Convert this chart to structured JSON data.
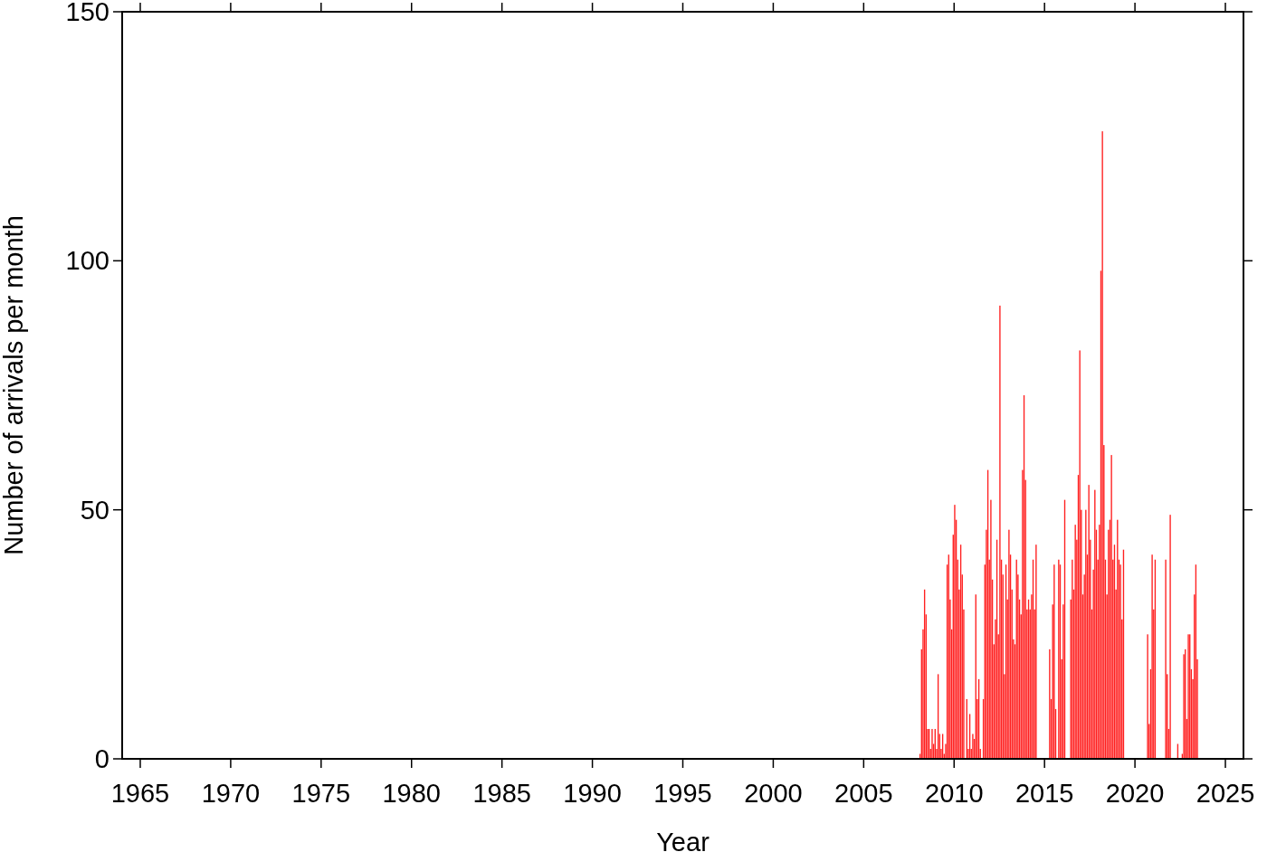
{
  "chart_data": {
    "type": "bar",
    "xlabel": "Year",
    "ylabel": "Number of arrivals per month",
    "xlim": [
      "1964",
      "2026"
    ],
    "ylim": [
      0,
      150
    ],
    "xticks": [
      "1965",
      "1970",
      "1975",
      "1980",
      "1985",
      "1990",
      "1995",
      "2000",
      "2005",
      "2010",
      "2015",
      "2020",
      "2025"
    ],
    "yticks": [
      0,
      50,
      100,
      150
    ],
    "x": [
      "2008-01",
      "2008-02",
      "2008-03",
      "2008-04",
      "2008-05",
      "2008-06",
      "2008-07",
      "2008-08",
      "2008-09",
      "2008-10",
      "2008-11",
      "2008-12",
      "2009-01",
      "2009-02",
      "2009-03",
      "2009-04",
      "2009-05",
      "2009-06",
      "2009-07",
      "2009-08",
      "2009-09",
      "2009-10",
      "2009-11",
      "2009-12",
      "2010-01",
      "2010-02",
      "2010-03",
      "2010-04",
      "2010-05",
      "2010-06",
      "2010-07",
      "2010-08",
      "2010-09",
      "2010-10",
      "2010-11",
      "2010-12",
      "2011-01",
      "2011-02",
      "2011-03",
      "2011-04",
      "2011-05",
      "2011-06",
      "2011-07",
      "2011-08",
      "2011-09",
      "2011-10",
      "2011-11",
      "2011-12",
      "2012-01",
      "2012-02",
      "2012-03",
      "2012-04",
      "2012-05",
      "2012-06",
      "2012-07",
      "2012-08",
      "2012-09",
      "2012-10",
      "2012-11",
      "2012-12",
      "2013-01",
      "2013-02",
      "2013-03",
      "2013-04",
      "2013-05",
      "2013-06",
      "2013-07",
      "2013-08",
      "2013-09",
      "2013-10",
      "2013-11",
      "2013-12",
      "2014-01",
      "2014-02",
      "2014-03",
      "2014-04",
      "2014-05",
      "2014-06",
      "2014-07",
      "2014-08",
      "2014-09",
      "2014-10",
      "2014-11",
      "2014-12",
      "2015-01",
      "2015-02",
      "2015-03",
      "2015-04",
      "2015-05",
      "2015-06",
      "2015-07",
      "2015-08",
      "2015-09",
      "2015-10",
      "2015-11",
      "2015-12",
      "2016-01",
      "2016-02",
      "2016-03",
      "2016-04",
      "2016-05",
      "2016-06",
      "2016-07",
      "2016-08",
      "2016-09",
      "2016-10",
      "2016-11",
      "2016-12",
      "2017-01",
      "2017-02",
      "2017-03",
      "2017-04",
      "2017-05",
      "2017-06",
      "2017-07",
      "2017-08",
      "2017-09",
      "2017-10",
      "2017-11",
      "2017-12",
      "2018-01",
      "2018-02",
      "2018-03",
      "2018-04",
      "2018-05",
      "2018-06",
      "2018-07",
      "2018-08",
      "2018-09",
      "2018-10",
      "2018-11",
      "2018-12",
      "2019-01",
      "2019-02",
      "2019-03",
      "2019-04",
      "2019-05",
      "2019-06",
      "2019-07",
      "2019-08",
      "2019-09",
      "2019-10",
      "2019-11",
      "2019-12",
      "2020-01",
      "2020-02",
      "2020-03",
      "2020-04",
      "2020-05",
      "2020-06",
      "2020-07",
      "2020-08",
      "2020-09",
      "2020-10",
      "2020-11",
      "2020-12",
      "2021-01",
      "2021-02",
      "2021-03",
      "2021-04",
      "2021-05",
      "2021-06",
      "2021-07",
      "2021-08",
      "2021-09",
      "2021-10",
      "2021-11",
      "2021-12",
      "2022-01",
      "2022-02",
      "2022-03",
      "2022-04",
      "2022-05",
      "2022-06",
      "2022-07",
      "2022-08",
      "2022-09",
      "2022-10",
      "2022-11",
      "2022-12",
      "2023-01",
      "2023-02",
      "2023-03",
      "2023-04",
      "2023-05",
      "2023-06"
    ],
    "series": [
      {
        "color": "#ff2020",
        "values": [
          0,
          1,
          22,
          26,
          34,
          29,
          6,
          6,
          2,
          6,
          3,
          6,
          2,
          17,
          5,
          2,
          5,
          1,
          3,
          39,
          41,
          32,
          26,
          45,
          51,
          48,
          40,
          34,
          43,
          37,
          30,
          0,
          12,
          2,
          9,
          2,
          5,
          4,
          33,
          12,
          16,
          2,
          0,
          12,
          39,
          46,
          58,
          40,
          52,
          36,
          23,
          28,
          44,
          25,
          91,
          40,
          37,
          17,
          39,
          32,
          46,
          41,
          34,
          24,
          23,
          40,
          37,
          32,
          29,
          58,
          73,
          56,
          30,
          32,
          30,
          33,
          40,
          30,
          43,
          0,
          0,
          0,
          0,
          0,
          0,
          0,
          0,
          22,
          12,
          31,
          39,
          10,
          0,
          40,
          39,
          20,
          31,
          52,
          0,
          0,
          0,
          32,
          40,
          34,
          47,
          44,
          57,
          82,
          50,
          33,
          37,
          50,
          41,
          55,
          44,
          30,
          38,
          54,
          46,
          40,
          47,
          98,
          126,
          63,
          40,
          33,
          46,
          48,
          61,
          40,
          43,
          34,
          48,
          40,
          39,
          28,
          42,
          0,
          0,
          0,
          0,
          0,
          0,
          0,
          0,
          0,
          0,
          0,
          0,
          0,
          0,
          0,
          25,
          7,
          18,
          41,
          30,
          40,
          0,
          0,
          0,
          0,
          0,
          0,
          40,
          17,
          6,
          49,
          0,
          0,
          0,
          0,
          3,
          0,
          0,
          1,
          21,
          22,
          8,
          25,
          25,
          18,
          16,
          33,
          39,
          20
        ]
      }
    ]
  }
}
